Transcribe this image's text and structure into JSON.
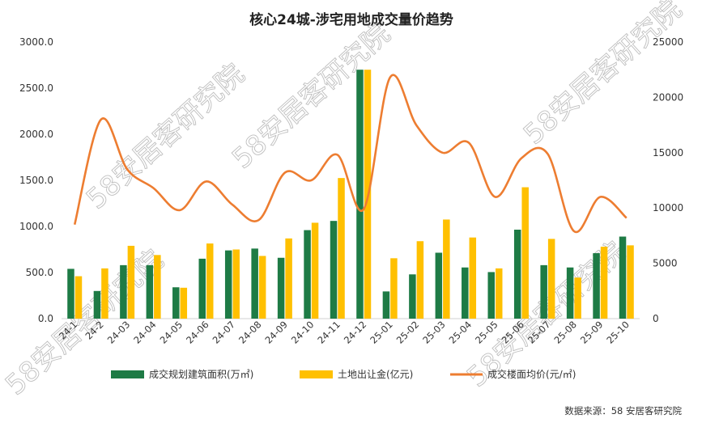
{
  "chart_data": {
    "type": "bar",
    "title": "核心24城-涉宅用地成交量价趋势",
    "categories": [
      "24-1",
      "24-2",
      "24-03",
      "24-04",
      "24-05",
      "24-06",
      "24-07",
      "24-08",
      "24-09",
      "24-10",
      "24-11",
      "24-12",
      "25-01",
      "25-02",
      "25-03",
      "25-04",
      "25-05",
      "25-06",
      "25-07",
      "25-08",
      "25-09",
      "25-10"
    ],
    "series": [
      {
        "name": "成交规划建筑面积(万㎡)",
        "kind": "bar",
        "axis": "left",
        "color": "#1E7B45",
        "values": [
          540,
          300,
          580,
          580,
          340,
          650,
          740,
          760,
          660,
          960,
          1060,
          2700,
          295,
          480,
          715,
          555,
          505,
          965,
          580,
          555,
          710,
          890
        ]
      },
      {
        "name": "土地出让金(亿元)",
        "kind": "bar",
        "axis": "left",
        "color": "#FFC000",
        "values": [
          460,
          545,
          790,
          690,
          335,
          815,
          750,
          680,
          870,
          1040,
          1525,
          2700,
          655,
          840,
          1075,
          880,
          545,
          1425,
          865,
          445,
          780,
          795
        ]
      },
      {
        "name": "成交楼面均价(元/㎡)",
        "kind": "line",
        "axis": "right",
        "color": "#ED7D31",
        "values": [
          8500,
          18000,
          13500,
          11800,
          9800,
          12400,
          10300,
          8900,
          13200,
          12500,
          14800,
          9900,
          21800,
          17500,
          15000,
          15900,
          11000,
          14500,
          14900,
          7900,
          11000,
          9100
        ]
      }
    ],
    "y_left": {
      "min": 0,
      "max": 3000,
      "ticks": [
        "0.0",
        "500.0",
        "1000.0",
        "1500.0",
        "2000.0",
        "2500.0",
        "3000.0"
      ]
    },
    "y_right": {
      "min": 0,
      "max": 25000,
      "ticks": [
        "0",
        "5000",
        "10000",
        "15000",
        "20000",
        "25000"
      ]
    },
    "source": "数据来源：58 安居客研究院",
    "watermark": "58安居客研究院"
  }
}
